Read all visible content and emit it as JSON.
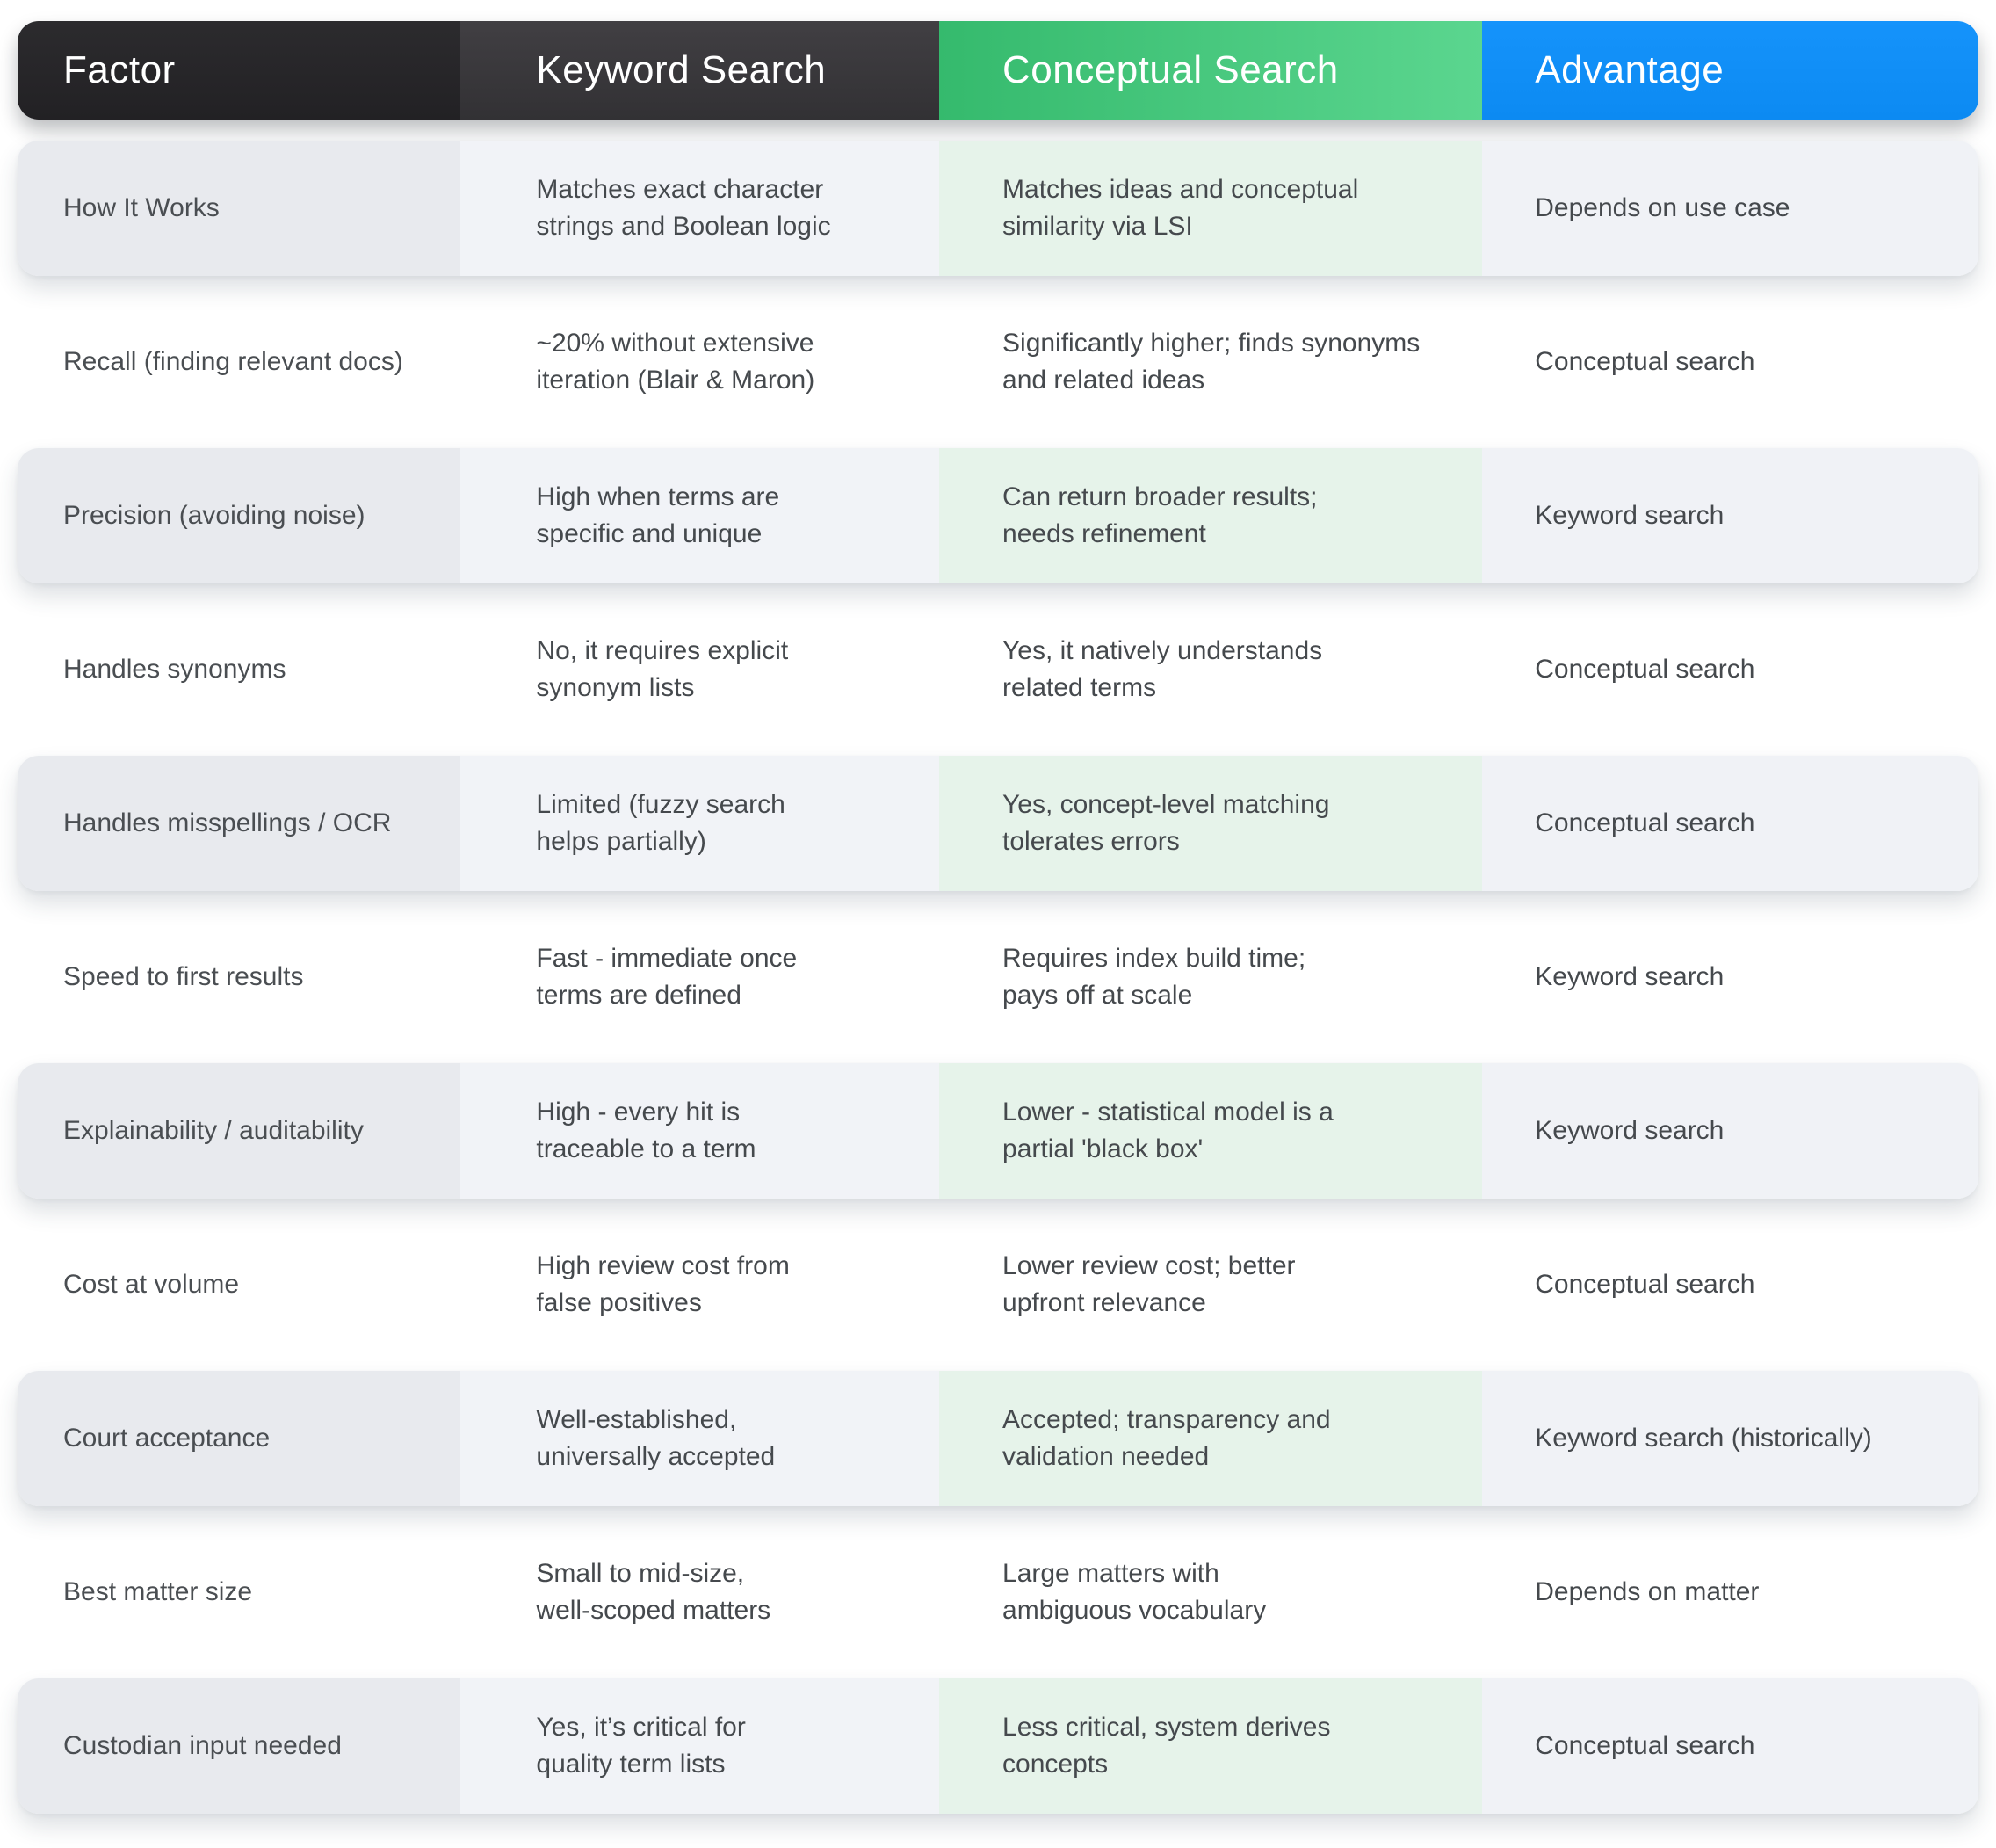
{
  "colors": {
    "header_factor_bg": "#232225",
    "header_keyword_bg": "#3a393c",
    "header_conceptual_gradient_start": "#35ba6d",
    "header_conceptual_gradient_end": "#5bd68f",
    "header_advantage_bg": "#0f8ef8",
    "header_text": "#ffffff",
    "card_factor_bg": "#e8eaee",
    "card_keyword_bg": "#f1f3f7",
    "card_conceptual_bg": "#e6f3ea",
    "card_advantage_bg": "#f0f2f6",
    "body_text": "#45494d"
  },
  "chart_data": {
    "type": "table",
    "columns": [
      "Factor",
      "Keyword Search",
      "Conceptual Search",
      "Advantage"
    ],
    "rows": [
      {
        "factor": "How It Works",
        "keyword": "Matches exact character\nstrings and Boolean logic",
        "conceptual": "Matches ideas and conceptual\nsimilarity via LSI",
        "advantage": "Depends on use case"
      },
      {
        "factor": "Recall (finding relevant docs)",
        "keyword": "~20% without extensive\niteration (Blair & Maron)",
        "conceptual": "Significantly higher; finds synonyms\nand related ideas",
        "advantage": "Conceptual search"
      },
      {
        "factor": "Precision (avoiding noise)",
        "keyword": "High when terms are\nspecific and unique",
        "conceptual": "Can return broader results;\nneeds refinement",
        "advantage": "Keyword search"
      },
      {
        "factor": "Handles synonyms",
        "keyword": "No, it requires explicit\nsynonym lists",
        "conceptual": "Yes, it natively understands\nrelated terms",
        "advantage": "Conceptual search"
      },
      {
        "factor": "Handles misspellings / OCR",
        "keyword": "Limited (fuzzy search\nhelps partially)",
        "conceptual": "Yes, concept-level matching\ntolerates errors",
        "advantage": "Conceptual search"
      },
      {
        "factor": "Speed to first results",
        "keyword": "Fast - immediate once\nterms are defined",
        "conceptual": "Requires index build time;\npays off at scale",
        "advantage": "Keyword search"
      },
      {
        "factor": "Explainability / auditability",
        "keyword": "High - every hit is\ntraceable to a term",
        "conceptual": "Lower - statistical model is a\npartial 'black box'",
        "advantage": "Keyword search"
      },
      {
        "factor": "Cost at volume",
        "keyword": "High review cost from\nfalse positives",
        "conceptual": "Lower review cost; better\nupfront relevance",
        "advantage": "Conceptual search"
      },
      {
        "factor": "Court acceptance",
        "keyword": "Well-established,\nuniversally accepted",
        "conceptual": "Accepted; transparency and\nvalidation needed",
        "advantage": "Keyword search (historically)"
      },
      {
        "factor": "Best matter size",
        "keyword": "Small to mid-size,\nwell-scoped matters",
        "conceptual": "Large matters with\nambiguous vocabulary",
        "advantage": "Depends on matter"
      },
      {
        "factor": "Custodian input needed",
        "keyword": "Yes, it’s critical for\nquality term lists",
        "conceptual": "Less critical, system derives\nconcepts",
        "advantage": "Conceptual search"
      }
    ]
  }
}
